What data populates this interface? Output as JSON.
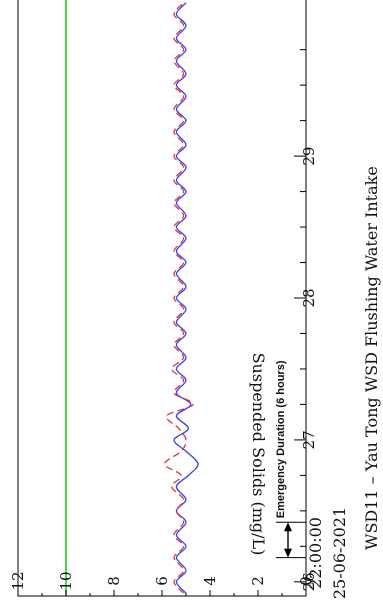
{
  "chart_data": {
    "type": "line",
    "orientation": "rotated-90-ccw",
    "title": "WSD11 – Yau Tong WSD Flushing Water Intake",
    "ylabel": "Suspended Solids (mg/L)",
    "xlabel": "",
    "start_time": "22:00:00",
    "start_date": "25-06-2021",
    "ylim": [
      0,
      12
    ],
    "xlim": [
      25.9,
      30.1
    ],
    "y_ticks": [
      "0",
      "2",
      "4",
      "6",
      "8",
      "10",
      "12"
    ],
    "x_ticks": [
      "26",
      "27",
      "28",
      "29"
    ],
    "x_tick_values": [
      26,
      27,
      28,
      29
    ],
    "grid": false,
    "reference_line": {
      "value": 10,
      "color": "#22cc22"
    },
    "emergency_bracket": {
      "label": "Emergency Duration (6 hours)",
      "from": 26.17,
      "to": 26.42
    },
    "series": [
      {
        "style": "solid",
        "color": "#3344ee",
        "x": [
          25.92,
          26.0,
          26.08,
          26.17,
          26.25,
          26.33,
          26.42,
          26.5,
          26.58,
          26.67,
          26.75,
          26.83,
          26.92,
          27.0,
          27.08,
          27.17,
          27.25,
          27.33,
          27.42,
          27.5,
          27.58,
          27.67,
          27.75,
          27.83,
          27.92,
          28.0,
          28.08,
          28.17,
          28.25,
          28.33,
          28.42,
          28.5,
          28.58,
          28.67,
          28.75,
          28.83,
          28.92,
          29.0,
          29.08,
          29.17,
          29.25,
          29.33,
          29.42,
          29.5,
          29.58,
          29.67,
          29.75,
          29.83,
          29.92,
          30.0,
          30.08
        ],
        "values": [
          5.0,
          5.4,
          5.0,
          5.4,
          5.0,
          5.4,
          5.0,
          5.4,
          5.0,
          5.4,
          4.9,
          4.5,
          5.0,
          5.5,
          4.9,
          5.4,
          4.8,
          5.4,
          5.0,
          5.4,
          5.0,
          5.4,
          5.0,
          5.4,
          5.0,
          5.4,
          5.0,
          5.4,
          5.0,
          5.4,
          5.0,
          5.4,
          5.0,
          5.4,
          5.0,
          5.4,
          5.0,
          5.4,
          5.0,
          5.4,
          5.0,
          5.4,
          5.0,
          5.4,
          5.0,
          5.4,
          5.0,
          5.4,
          5.0,
          5.4,
          5.0
        ]
      },
      {
        "style": "dashed",
        "color": "#ee3333",
        "x": [
          25.92,
          26.0,
          26.08,
          26.17,
          26.25,
          26.33,
          26.42,
          26.5,
          26.58,
          26.67,
          26.75,
          26.83,
          26.92,
          27.0,
          27.08,
          27.17,
          27.25,
          27.33,
          27.42,
          27.5,
          27.58,
          27.67,
          27.75,
          27.83,
          27.92,
          28.0,
          28.08,
          28.17,
          28.25,
          28.33,
          28.42,
          28.5,
          28.58,
          28.67,
          28.75,
          28.83,
          28.92,
          29.0,
          29.08,
          29.17,
          29.25,
          29.33,
          29.42,
          29.5,
          29.58,
          29.67,
          29.75,
          29.83,
          29.92,
          30.0,
          30.08
        ],
        "values": [
          5.1,
          5.5,
          5.1,
          5.5,
          5.1,
          5.5,
          5.1,
          5.4,
          5.1,
          5.6,
          5.2,
          5.9,
          5.2,
          5.0,
          5.3,
          5.8,
          4.7,
          5.5,
          5.1,
          5.6,
          5.1,
          5.5,
          5.1,
          5.5,
          5.1,
          5.5,
          5.1,
          5.5,
          5.1,
          5.5,
          5.1,
          5.5,
          5.1,
          5.5,
          5.1,
          5.5,
          5.1,
          5.5,
          5.1,
          5.5,
          5.1,
          5.5,
          5.1,
          5.5,
          5.1,
          5.5,
          5.1,
          5.5,
          5.1,
          5.5,
          5.1
        ]
      }
    ]
  }
}
